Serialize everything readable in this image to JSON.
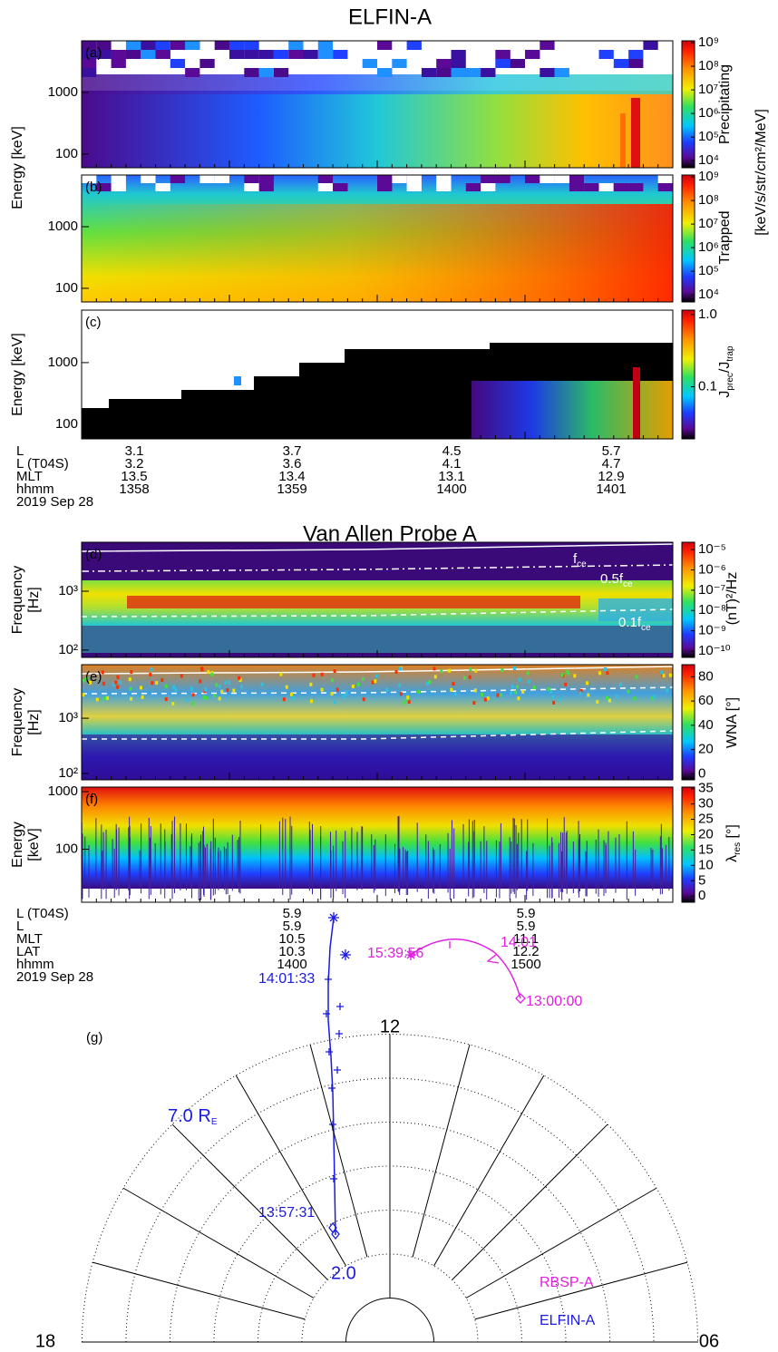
{
  "elfin": {
    "title": "ELFIN-A",
    "ylabel": "Energy [keV]",
    "units": "[keV/s/str/cm²/MeV]",
    "panels": [
      {
        "tag": "(a)",
        "ylog": true,
        "ylim": [
          60,
          6900
        ],
        "yticks": [
          100,
          1000
        ],
        "clog": true,
        "clim": [
          5000,
          1200000000
        ],
        "cticks": [
          {
            "value": 10000,
            "label": "10⁴"
          },
          {
            "value": 100000,
            "label": "10⁵"
          },
          {
            "value": 1000000,
            "label": "10⁶"
          },
          {
            "value": 10000000,
            "label": "10⁷"
          },
          {
            "value": 100000000,
            "label": "10⁸"
          },
          {
            "value": 1000000000,
            "label": "10⁹"
          }
        ],
        "clabel": {
          "parts": [
            "Precipitating"
          ]
        }
      },
      {
        "tag": "(b)",
        "ylog": true,
        "ylim": [
          60,
          6900
        ],
        "yticks": [
          100,
          1000
        ],
        "clog": true,
        "clim": [
          5000,
          1200000000
        ],
        "cticks": [
          {
            "value": 10000,
            "label": "10⁴"
          },
          {
            "value": 100000,
            "label": "10⁵"
          },
          {
            "value": 1000000,
            "label": "10⁶"
          },
          {
            "value": 10000000,
            "label": "10⁷"
          },
          {
            "value": 100000000,
            "label": "10⁸"
          },
          {
            "value": 1000000000,
            "label": "10⁹"
          }
        ],
        "clabel": {
          "parts": [
            "Trapped"
          ]
        }
      },
      {
        "tag": "(c)",
        "ylabel": "Energy [keV]",
        "ylog": true,
        "ylim": [
          58,
          7100
        ],
        "yticks": [
          100,
          1000
        ],
        "clog": true,
        "clim": [
          0.019,
          1.15
        ],
        "cticks": [
          0.1,
          {
            "value": 1,
            "label": "1.0"
          }
        ],
        "clabel": {
          "parts": [
            "J",
            "prec",
            "/J",
            "trap"
          ]
        }
      }
    ],
    "table": {
      "rows": [
        [
          "L",
          "3.1",
          "3.7",
          "4.5",
          "5.7"
        ],
        [
          "L (T04S)",
          "3.2",
          "3.6",
          "4.1",
          "4.7"
        ],
        [
          "MLT",
          "13.5",
          "13.4",
          "13.1",
          "12.9"
        ],
        [
          "hhmm",
          "1358",
          "1359",
          "1400",
          "1401"
        ]
      ],
      "date": "2019 Sep 28"
    }
  },
  "vap": {
    "title": "Van Allen Probe A",
    "panels": [
      {
        "tag": "(d)",
        "ylabel": [
          "Frequency",
          "[Hz]"
        ],
        "ylog": true,
        "ylim": [
          75,
          6800
        ],
        "yticks": [
          {
            "value": 100,
            "label": "10²"
          },
          {
            "value": 1000,
            "label": "10³"
          }
        ],
        "clog": true,
        "clim": [
          4.9e-11,
          2.3e-05
        ],
        "cticks": [
          {
            "value": 1e-10,
            "label": "10⁻¹⁰"
          },
          {
            "value": 1e-09,
            "label": "10⁻⁹"
          },
          {
            "value": 1e-08,
            "label": "10⁻⁸"
          },
          {
            "value": 1e-07,
            "label": "10⁻⁷"
          },
          {
            "value": 1e-06,
            "label": "10⁻⁶"
          },
          {
            "value": 1e-05,
            "label": "10⁻⁵"
          }
        ],
        "clabel": {
          "parts": [
            "(nT)²/Hz"
          ]
        },
        "lines": [
          {
            "parts": [
              "f",
              "ce"
            ]
          },
          {
            "parts": [
              "0.5f",
              "ce"
            ]
          },
          {
            "parts": [
              "0.1f",
              "ce"
            ]
          }
        ]
      },
      {
        "tag": "(e)",
        "ylabel": [
          "Frequency",
          "[Hz]"
        ],
        "ylog": true,
        "ylim": [
          77,
          9300
        ],
        "yticks": [
          {
            "value": 100,
            "label": "10²"
          },
          {
            "value": 1000,
            "label": "10³"
          }
        ],
        "clog": false,
        "clim": [
          -5,
          90
        ],
        "cticks": [
          0,
          20,
          40,
          60,
          80
        ],
        "clabel": {
          "parts": [
            "WNA [°]"
          ]
        }
      },
      {
        "tag": "(f)",
        "ylabel": [
          "Energy",
          "[keV]"
        ],
        "ylog": true,
        "ylim": [
          12,
          1200
        ],
        "yticks": [
          100,
          1000
        ],
        "clog": false,
        "clim": [
          -2,
          35.5
        ],
        "cticks": [
          0,
          5,
          10,
          15,
          20,
          25,
          30,
          35
        ],
        "clabel": {
          "parts": [
            "λ",
            "res",
            " [°]"
          ]
        }
      }
    ],
    "table": {
      "rows": [
        [
          "L (T04S)",
          "5.9",
          "5.9"
        ],
        [
          "L",
          "5.9",
          "5.9"
        ],
        [
          "MLT",
          "10.5",
          "11.1"
        ],
        [
          "LAT",
          "10.3",
          "12.2"
        ],
        [
          "hhmm",
          "1400",
          "1500"
        ]
      ],
      "date": "2019 Sep 28"
    }
  },
  "polar": {
    "tag": "(g)",
    "hours": {
      "top": "12",
      "left": "18",
      "right": "06"
    },
    "outer_radius": {
      "parts": [
        "7.0 R",
        "E"
      ]
    },
    "inner_radius": "2.0",
    "elfin_times": [
      "14:01:33",
      "13:57:31"
    ],
    "rbsp_times": [
      "15:39:56",
      "14:01",
      "13:00:00"
    ],
    "legend": [
      "RBSP-A",
      "ELFIN-A"
    ]
  }
}
